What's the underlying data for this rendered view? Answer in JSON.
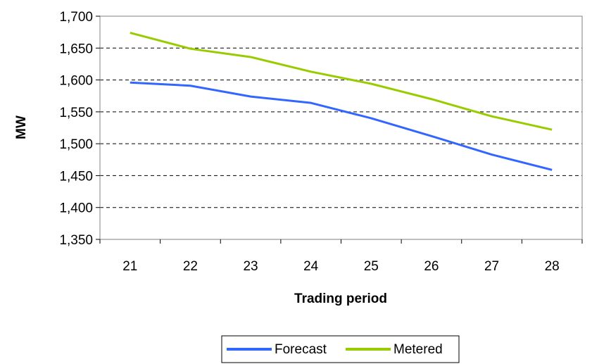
{
  "chart_data": {
    "type": "line",
    "title": "",
    "xlabel": "Trading period",
    "ylabel": "MW",
    "categories": [
      "21",
      "22",
      "23",
      "24",
      "25",
      "26",
      "27",
      "28"
    ],
    "ylim": [
      1350,
      1700
    ],
    "yticks": [
      1350,
      1400,
      1450,
      1500,
      1550,
      1600,
      1650,
      1700
    ],
    "ytick_labels": [
      "1,350",
      "1,400",
      "1,450",
      "1,500",
      "1,550",
      "1,600",
      "1,650",
      "1,700"
    ],
    "grid": "horizontal dashed",
    "legend_position": "bottom",
    "series": [
      {
        "name": "Forecast",
        "color": "#3366ff",
        "values": [
          1596,
          1591,
          1574,
          1564,
          1540,
          1512,
          1483,
          1459
        ]
      },
      {
        "name": "Metered",
        "color": "#99cc00",
        "values": [
          1674,
          1649,
          1636,
          1613,
          1594,
          1570,
          1543,
          1522
        ]
      }
    ]
  }
}
